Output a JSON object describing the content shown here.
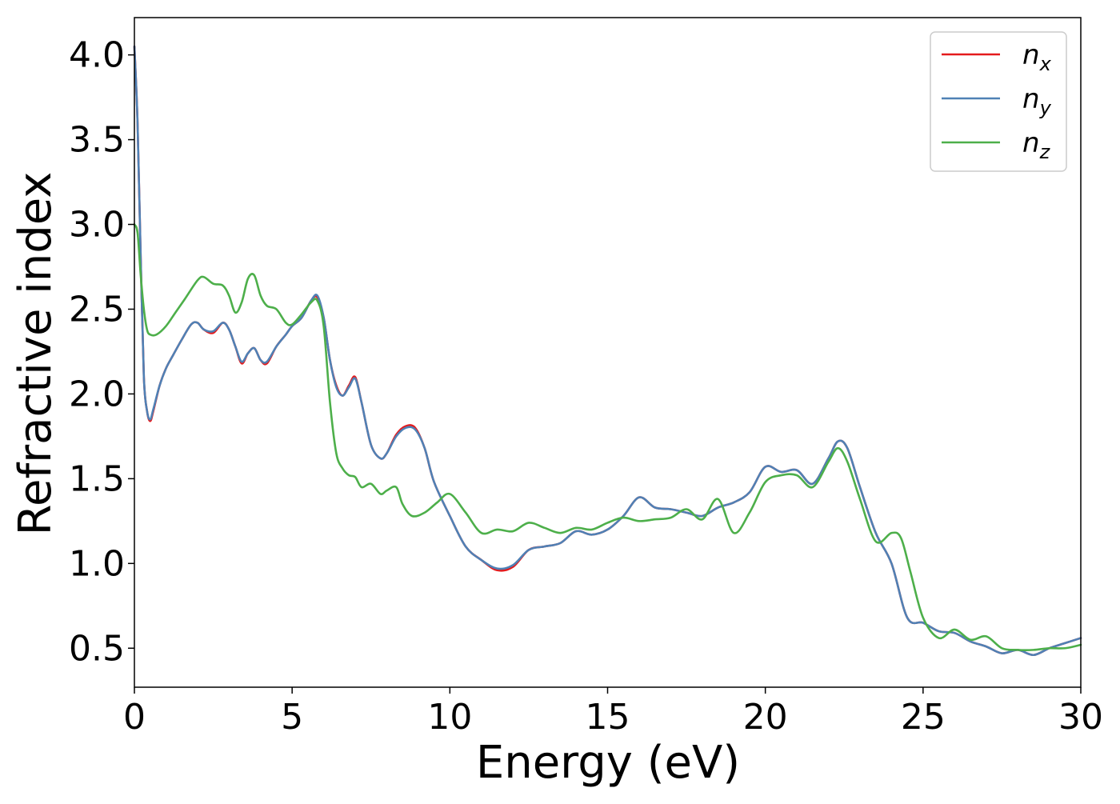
{
  "chart_data": {
    "type": "line",
    "title": "",
    "xlabel": "Energy (eV)",
    "ylabel": "Refractive index",
    "xlim": [
      0,
      30
    ],
    "ylim": [
      0.27,
      4.22
    ],
    "xticks": [
      0,
      5,
      10,
      15,
      20,
      25,
      30
    ],
    "xtick_labels": [
      "0",
      "5",
      "10",
      "15",
      "20",
      "25",
      "30"
    ],
    "yticks": [
      0.5,
      1.0,
      1.5,
      2.0,
      2.5,
      3.0,
      3.5,
      4.0
    ],
    "ytick_labels": [
      "0.5",
      "1.0",
      "1.5",
      "2.0",
      "2.5",
      "3.0",
      "3.5",
      "4.0"
    ],
    "grid": false,
    "legend_position": "top-right",
    "series": [
      {
        "name": "n_x",
        "label_main": "n",
        "label_sub": "x",
        "color": "#e41a1c",
        "x": [
          0,
          0.1,
          0.2,
          0.3,
          0.4,
          0.5,
          0.6,
          0.8,
          1.0,
          1.2,
          1.5,
          1.8,
          2.0,
          2.2,
          2.5,
          2.8,
          3.0,
          3.2,
          3.4,
          3.6,
          3.8,
          4.0,
          4.2,
          4.5,
          4.8,
          5.0,
          5.3,
          5.6,
          5.8,
          6.0,
          6.2,
          6.4,
          6.6,
          6.8,
          7.0,
          7.2,
          7.5,
          7.8,
          8.0,
          8.3,
          8.6,
          8.9,
          9.2,
          9.5,
          10.0,
          10.5,
          11.0,
          11.5,
          12.0,
          12.5,
          13.0,
          13.5,
          14.0,
          14.5,
          15.0,
          15.5,
          16.0,
          16.5,
          17.0,
          17.5,
          18.0,
          18.5,
          19.0,
          19.5,
          20.0,
          20.5,
          21.0,
          21.5,
          22.0,
          22.3,
          22.6,
          23.0,
          23.5,
          24.0,
          24.5,
          25.0,
          25.5,
          26.0,
          26.5,
          27.0,
          27.5,
          28.0,
          28.5,
          29.0,
          29.5,
          30.0
        ],
        "y": [
          4.05,
          3.6,
          2.8,
          2.1,
          1.9,
          1.84,
          1.9,
          2.05,
          2.15,
          2.22,
          2.32,
          2.41,
          2.42,
          2.38,
          2.36,
          2.42,
          2.38,
          2.28,
          2.18,
          2.24,
          2.27,
          2.2,
          2.18,
          2.28,
          2.35,
          2.4,
          2.45,
          2.55,
          2.57,
          2.45,
          2.2,
          2.05,
          1.99,
          2.05,
          2.1,
          1.95,
          1.7,
          1.62,
          1.65,
          1.76,
          1.81,
          1.8,
          1.68,
          1.48,
          1.28,
          1.1,
          1.02,
          0.96,
          0.98,
          1.08,
          1.1,
          1.12,
          1.19,
          1.17,
          1.2,
          1.28,
          1.39,
          1.33,
          1.32,
          1.3,
          1.28,
          1.33,
          1.36,
          1.42,
          1.57,
          1.54,
          1.55,
          1.47,
          1.62,
          1.72,
          1.68,
          1.45,
          1.18,
          1.0,
          0.68,
          0.65,
          0.6,
          0.59,
          0.54,
          0.51,
          0.47,
          0.49,
          0.46,
          0.5,
          0.53,
          0.56
        ]
      },
      {
        "name": "n_y",
        "label_main": "n",
        "label_sub": "y",
        "color": "#4f81b5",
        "x": [
          0,
          0.1,
          0.2,
          0.3,
          0.4,
          0.5,
          0.6,
          0.8,
          1.0,
          1.2,
          1.5,
          1.8,
          2.0,
          2.2,
          2.5,
          2.8,
          3.0,
          3.2,
          3.4,
          3.6,
          3.8,
          4.0,
          4.2,
          4.5,
          4.8,
          5.0,
          5.3,
          5.6,
          5.8,
          6.0,
          6.2,
          6.4,
          6.6,
          6.8,
          7.0,
          7.2,
          7.5,
          7.8,
          8.0,
          8.3,
          8.6,
          8.9,
          9.2,
          9.5,
          10.0,
          10.5,
          11.0,
          11.5,
          12.0,
          12.5,
          13.0,
          13.5,
          14.0,
          14.5,
          15.0,
          15.5,
          16.0,
          16.5,
          17.0,
          17.5,
          18.0,
          18.5,
          19.0,
          19.5,
          20.0,
          20.5,
          21.0,
          21.5,
          22.0,
          22.3,
          22.6,
          23.0,
          23.5,
          24.0,
          24.5,
          25.0,
          25.5,
          26.0,
          26.5,
          27.0,
          27.5,
          28.0,
          28.5,
          29.0,
          29.5,
          30.0
        ],
        "y": [
          4.05,
          3.6,
          2.8,
          2.1,
          1.9,
          1.85,
          1.91,
          2.05,
          2.15,
          2.22,
          2.32,
          2.41,
          2.42,
          2.38,
          2.37,
          2.42,
          2.38,
          2.28,
          2.19,
          2.24,
          2.27,
          2.2,
          2.19,
          2.28,
          2.35,
          2.4,
          2.45,
          2.55,
          2.58,
          2.45,
          2.2,
          2.04,
          1.99,
          2.04,
          2.09,
          1.95,
          1.7,
          1.62,
          1.65,
          1.75,
          1.8,
          1.79,
          1.68,
          1.48,
          1.28,
          1.1,
          1.02,
          0.97,
          0.99,
          1.08,
          1.1,
          1.12,
          1.19,
          1.17,
          1.2,
          1.28,
          1.39,
          1.33,
          1.32,
          1.3,
          1.28,
          1.33,
          1.36,
          1.42,
          1.57,
          1.54,
          1.55,
          1.47,
          1.62,
          1.72,
          1.68,
          1.45,
          1.18,
          1.0,
          0.68,
          0.65,
          0.6,
          0.59,
          0.54,
          0.51,
          0.47,
          0.49,
          0.46,
          0.5,
          0.53,
          0.56
        ]
      },
      {
        "name": "n_z",
        "label_main": "n",
        "label_sub": "z",
        "color": "#4daf4a",
        "x": [
          0,
          0.1,
          0.2,
          0.3,
          0.4,
          0.5,
          0.7,
          1.0,
          1.3,
          1.6,
          2.0,
          2.2,
          2.5,
          2.8,
          3.0,
          3.2,
          3.4,
          3.6,
          3.8,
          4.0,
          4.2,
          4.5,
          4.8,
          5.0,
          5.3,
          5.6,
          5.8,
          6.0,
          6.2,
          6.4,
          6.6,
          6.8,
          7.0,
          7.2,
          7.5,
          7.8,
          8.0,
          8.3,
          8.5,
          8.8,
          9.2,
          9.6,
          10.0,
          10.5,
          11.0,
          11.5,
          12.0,
          12.5,
          13.0,
          13.5,
          14.0,
          14.5,
          15.0,
          15.5,
          16.0,
          16.5,
          17.0,
          17.5,
          18.0,
          18.5,
          19.0,
          19.5,
          20.0,
          20.5,
          21.0,
          21.5,
          22.0,
          22.3,
          22.6,
          23.0,
          23.5,
          24.0,
          24.3,
          24.6,
          25.0,
          25.5,
          26.0,
          26.5,
          27.0,
          27.5,
          28.0,
          28.5,
          29.0,
          29.5,
          30.0
        ],
        "y": [
          3.0,
          2.95,
          2.7,
          2.5,
          2.38,
          2.35,
          2.35,
          2.4,
          2.48,
          2.56,
          2.67,
          2.69,
          2.65,
          2.64,
          2.58,
          2.48,
          2.54,
          2.68,
          2.7,
          2.58,
          2.52,
          2.5,
          2.42,
          2.41,
          2.47,
          2.54,
          2.55,
          2.4,
          1.95,
          1.65,
          1.56,
          1.52,
          1.51,
          1.45,
          1.47,
          1.41,
          1.43,
          1.45,
          1.35,
          1.28,
          1.3,
          1.36,
          1.41,
          1.3,
          1.18,
          1.2,
          1.19,
          1.24,
          1.21,
          1.18,
          1.21,
          1.2,
          1.24,
          1.27,
          1.25,
          1.26,
          1.27,
          1.32,
          1.26,
          1.38,
          1.18,
          1.3,
          1.48,
          1.52,
          1.52,
          1.45,
          1.6,
          1.68,
          1.6,
          1.38,
          1.13,
          1.18,
          1.15,
          0.95,
          0.68,
          0.56,
          0.61,
          0.55,
          0.57,
          0.5,
          0.49,
          0.49,
          0.5,
          0.5,
          0.52
        ]
      }
    ]
  }
}
